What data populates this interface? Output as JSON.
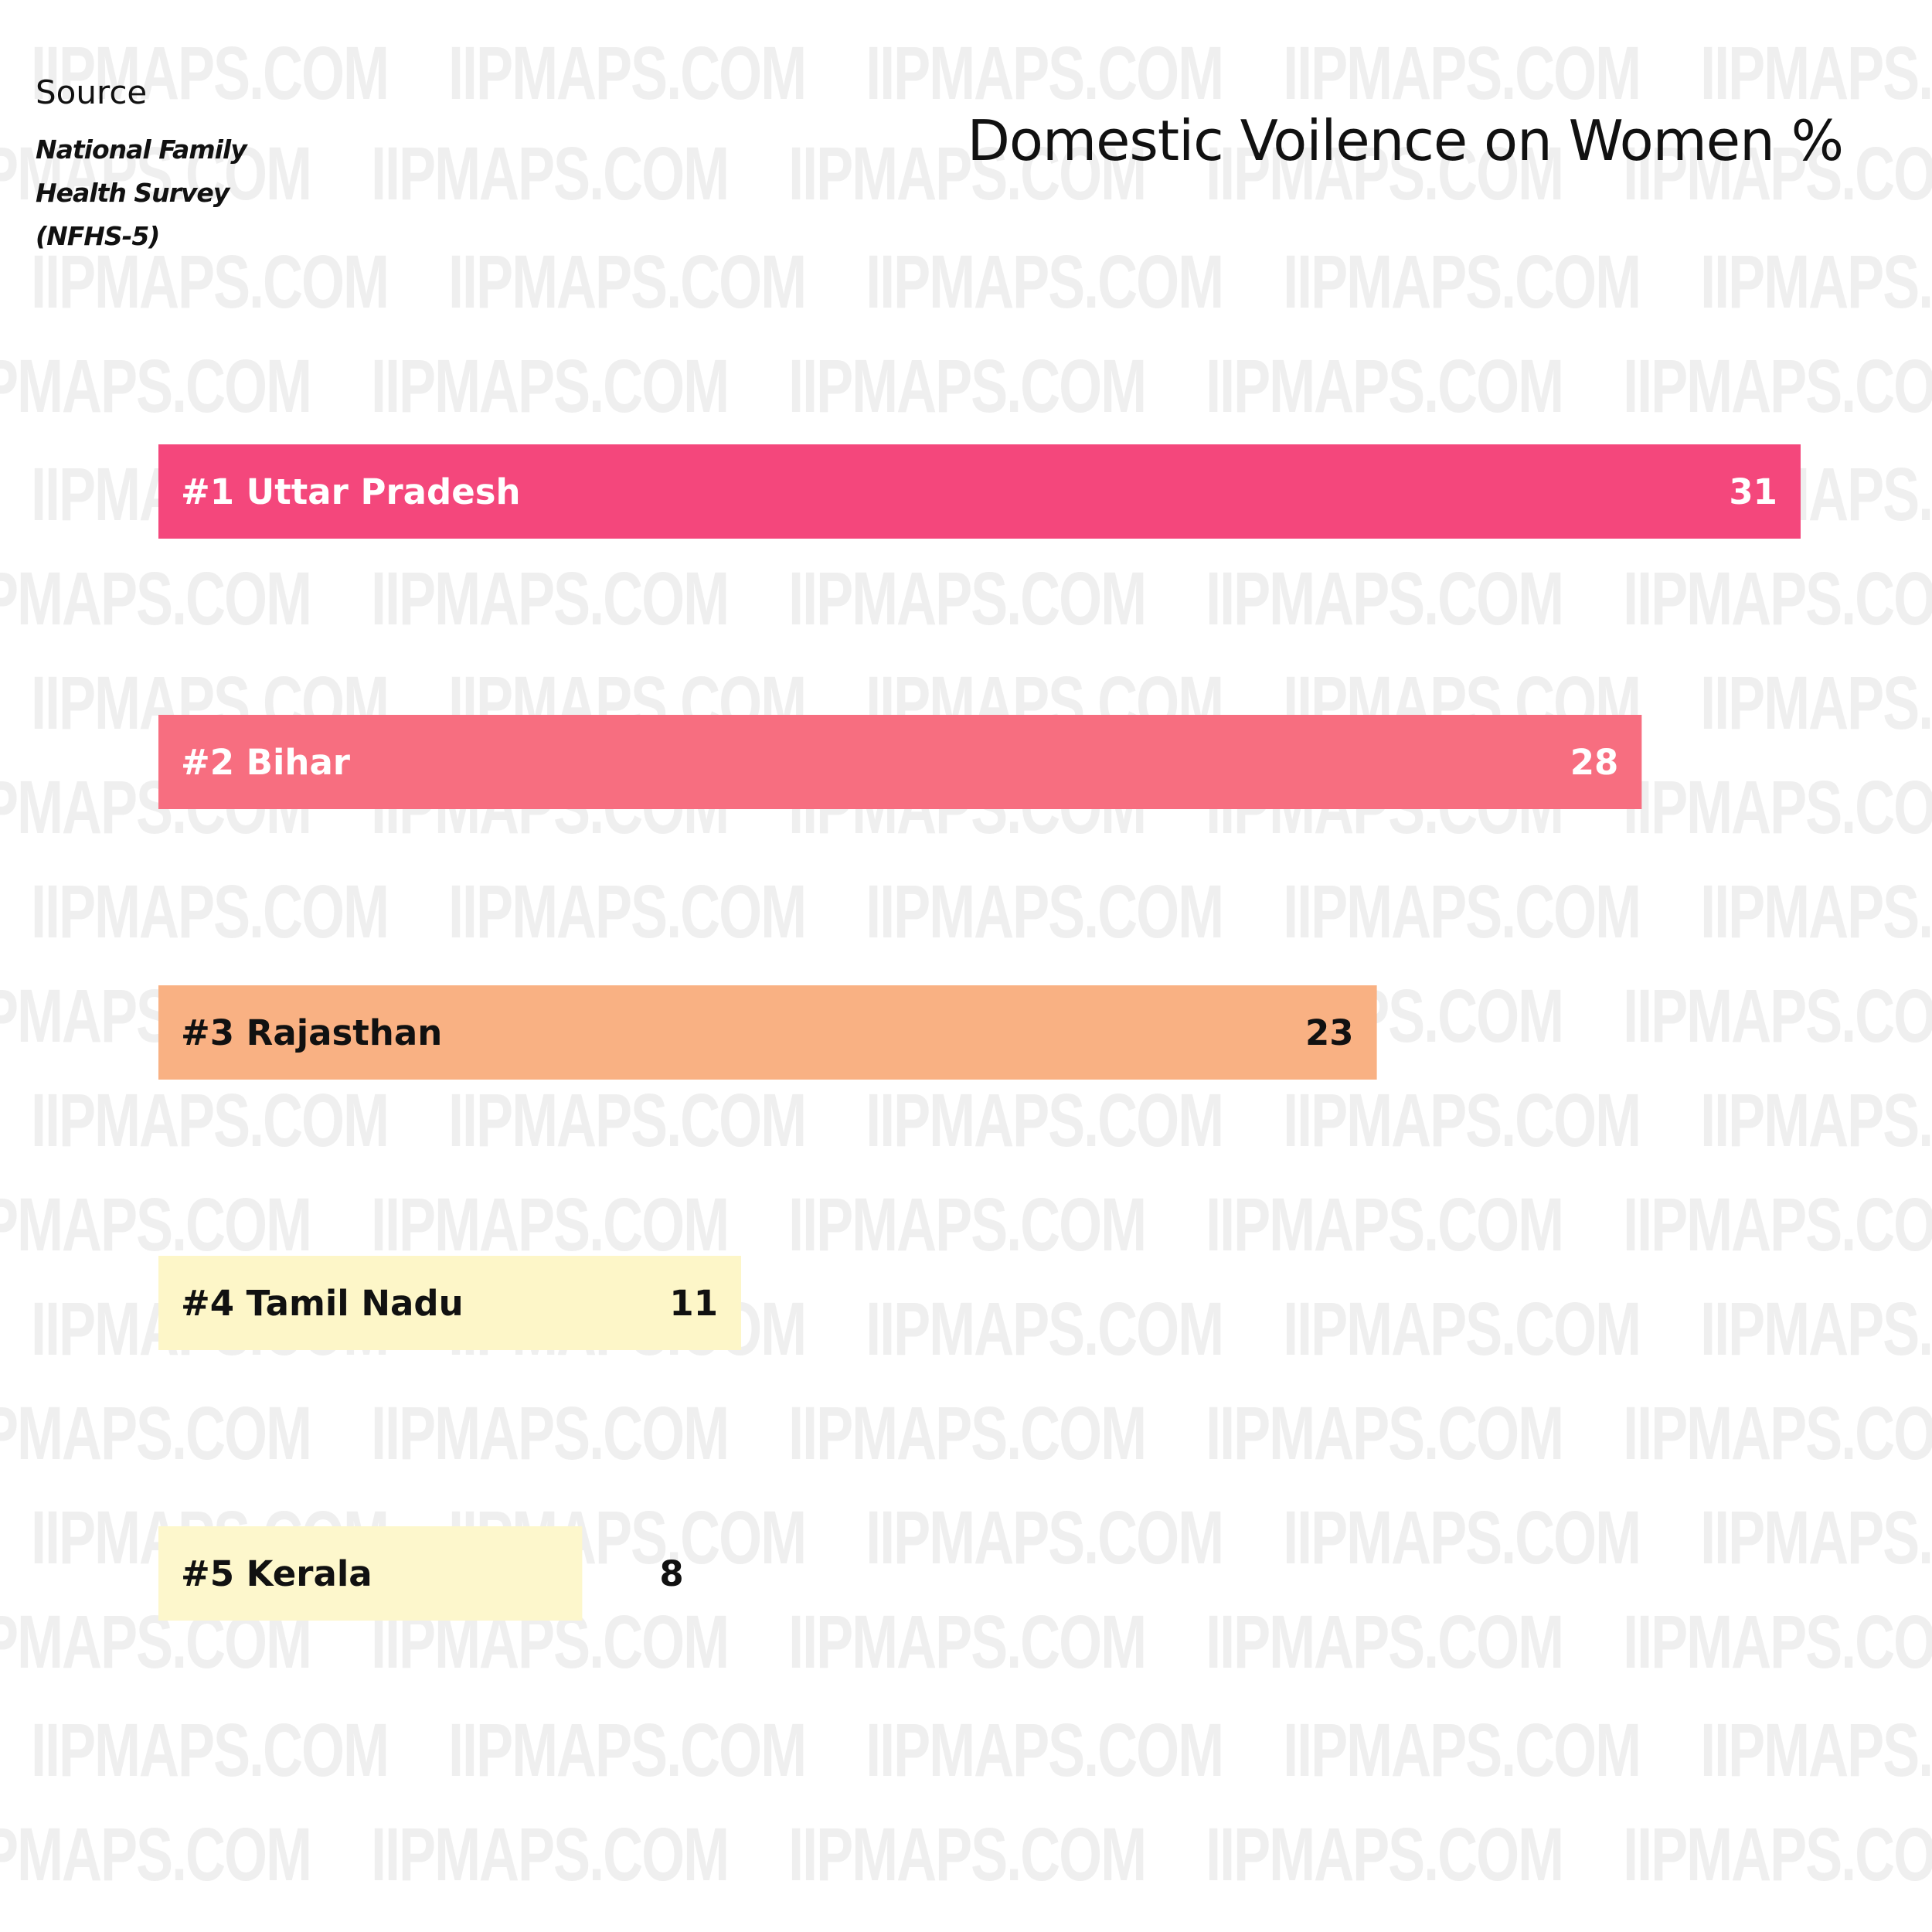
{
  "watermark": "IIPMAPS.COM",
  "source": {
    "label": "Source",
    "body": "National Family Health Survey (NFHS-5)"
  },
  "chart_data": {
    "type": "bar",
    "orientation": "horizontal",
    "title": "Domestic Voilence on Women %",
    "xlabel": "",
    "ylabel": "",
    "xlim": [
      0,
      31
    ],
    "grid": false,
    "categories": [
      "#1 Uttar Pradesh",
      "#2 Bihar",
      "#3 Rajasthan",
      "#4 Tamil Nadu",
      "#5 Kerala"
    ],
    "values": [
      31,
      28,
      23,
      11,
      8
    ],
    "colors": [
      "#f4477c",
      "#f76e80",
      "#f9b183",
      "#fdf6c8",
      "#fdf7cc"
    ],
    "label_colors": [
      "#ffffff",
      "#ffffff",
      "#111111",
      "#111111",
      "#111111"
    ]
  }
}
